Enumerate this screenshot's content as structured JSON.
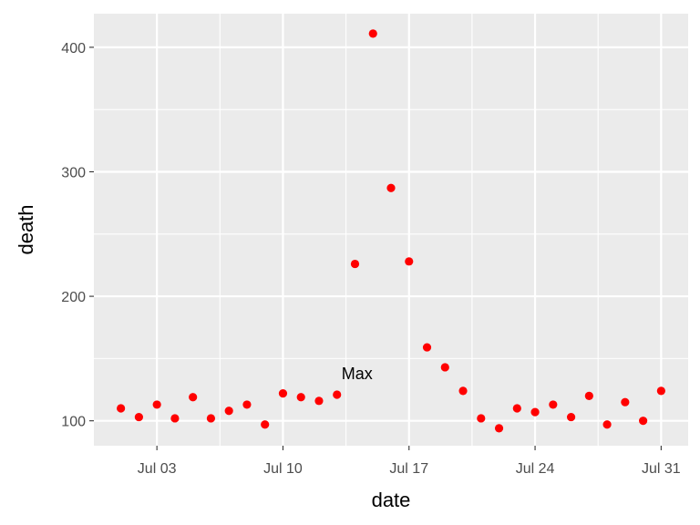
{
  "chart_data": {
    "type": "scatter",
    "xlabel": "date",
    "ylabel": "death",
    "x_start": "Jul 01",
    "x": [
      "Jul 01",
      "Jul 02",
      "Jul 03",
      "Jul 04",
      "Jul 05",
      "Jul 06",
      "Jul 07",
      "Jul 08",
      "Jul 09",
      "Jul 10",
      "Jul 11",
      "Jul 12",
      "Jul 13",
      "Jul 14",
      "Jul 15",
      "Jul 16",
      "Jul 17",
      "Jul 18",
      "Jul 19",
      "Jul 20",
      "Jul 21",
      "Jul 22",
      "Jul 23",
      "Jul 24",
      "Jul 25",
      "Jul 26",
      "Jul 27",
      "Jul 28",
      "Jul 29",
      "Jul 30",
      "Jul 31"
    ],
    "y": [
      110,
      103,
      113,
      102,
      119,
      102,
      108,
      113,
      97,
      122,
      119,
      116,
      121,
      226,
      411,
      287,
      228,
      159,
      143,
      124,
      102,
      94,
      110,
      107,
      113,
      103,
      120,
      97,
      115,
      100,
      124
    ],
    "x_ticks": [
      "Jul 03",
      "Jul 10",
      "Jul 17",
      "Jul 24",
      "Jul 31"
    ],
    "y_ticks": [
      100,
      200,
      300,
      400
    ],
    "ylim": [
      80,
      427
    ],
    "point_color": "#ff0000",
    "panel_background": "#ebebeb",
    "grid": true,
    "annotations": [
      {
        "text": "Max",
        "x": "Jul 13",
        "y": 138
      }
    ]
  }
}
